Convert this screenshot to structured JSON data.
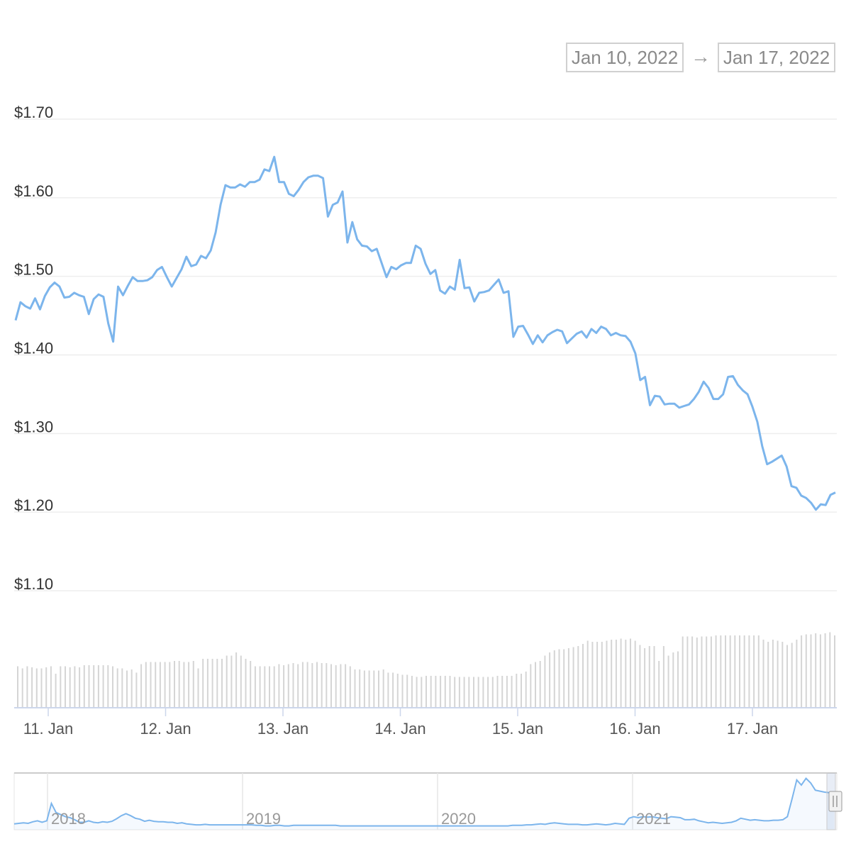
{
  "range": {
    "from": "Jan 10, 2022",
    "arrow": "→",
    "to": "Jan 17, 2022"
  },
  "colors": {
    "line": "#7cb5ec",
    "volume": "#d5d5d5",
    "grid": "#eeeeee",
    "navigator_line": "#7cb5ec"
  },
  "chart_data": {
    "type": "line",
    "title": "",
    "y_ticks": [
      "$1.10",
      "$1.20",
      "$1.30",
      "$1.40",
      "$1.50",
      "$1.60",
      "$1.70"
    ],
    "ylim": [
      1.1,
      1.7
    ],
    "x_ticks": [
      "11. Jan",
      "12. Jan",
      "13. Jan",
      "14. Jan",
      "15. Jan",
      "16. Jan",
      "17. Jan"
    ],
    "x_range": [
      "2022-01-10 16:00",
      "2022-01-17 18:00"
    ],
    "grid": true,
    "legend": "none",
    "series": [
      {
        "values": [
          1.444,
          1.467,
          1.462,
          1.459,
          1.472,
          1.458,
          1.475,
          1.486,
          1.492,
          1.487,
          1.473,
          1.474,
          1.479,
          1.476,
          1.474,
          1.452,
          1.471,
          1.477,
          1.474,
          1.44,
          1.417,
          1.487,
          1.476,
          1.488,
          1.499,
          1.494,
          1.494,
          1.495,
          1.499,
          1.508,
          1.512,
          1.499,
          1.487,
          1.498,
          1.509,
          1.525,
          1.513,
          1.515,
          1.526,
          1.523,
          1.533,
          1.556,
          1.591,
          1.616,
          1.613,
          1.613,
          1.617,
          1.614,
          1.62,
          1.62,
          1.623,
          1.636,
          1.634,
          1.652,
          1.62,
          1.62,
          1.605,
          1.602,
          1.61,
          1.62,
          1.626,
          1.628,
          1.628,
          1.625,
          1.576,
          1.591,
          1.594,
          1.608,
          1.543,
          1.569,
          1.547,
          1.539,
          1.538,
          1.532,
          1.535,
          1.517,
          1.499,
          1.512,
          1.509,
          1.514,
          1.517,
          1.517,
          1.539,
          1.535,
          1.516,
          1.503,
          1.508,
          1.482,
          1.478,
          1.487,
          1.483,
          1.521,
          1.485,
          1.486,
          1.468,
          1.479,
          1.48,
          1.482,
          1.489,
          1.496,
          1.479,
          1.481,
          1.423,
          1.436,
          1.437,
          1.426,
          1.414,
          1.425,
          1.416,
          1.425,
          1.429,
          1.432,
          1.43,
          1.415,
          1.421,
          1.427,
          1.43,
          1.422,
          1.433,
          1.428,
          1.436,
          1.433,
          1.425,
          1.428,
          1.425,
          1.424,
          1.417,
          1.402,
          1.368,
          1.372,
          1.336,
          1.348,
          1.347,
          1.337,
          1.338,
          1.338,
          1.333,
          1.335,
          1.337,
          1.344,
          1.353,
          1.366,
          1.358,
          1.344,
          1.344,
          1.35,
          1.372,
          1.373,
          1.362,
          1.355,
          1.35,
          1.334,
          1.315,
          1.284,
          1.261,
          1.264,
          1.268,
          1.272,
          1.258,
          1.233,
          1.231,
          1.221,
          1.218,
          1.212,
          1.203,
          1.21,
          1.209,
          1.222,
          1.225
        ]
      }
    ],
    "volume": {
      "values": [
        0.39,
        0.37,
        0.39,
        0.38,
        0.37,
        0.37,
        0.38,
        0.39,
        0.32,
        0.39,
        0.39,
        0.38,
        0.39,
        0.38,
        0.4,
        0.4,
        0.4,
        0.4,
        0.4,
        0.4,
        0.39,
        0.37,
        0.37,
        0.35,
        0.36,
        0.33,
        0.41,
        0.43,
        0.43,
        0.43,
        0.43,
        0.43,
        0.43,
        0.44,
        0.44,
        0.43,
        0.43,
        0.44,
        0.37,
        0.46,
        0.46,
        0.46,
        0.46,
        0.46,
        0.49,
        0.49,
        0.52,
        0.49,
        0.46,
        0.44,
        0.39,
        0.39,
        0.39,
        0.39,
        0.39,
        0.41,
        0.4,
        0.41,
        0.42,
        0.41,
        0.43,
        0.43,
        0.42,
        0.43,
        0.42,
        0.42,
        0.41,
        0.4,
        0.41,
        0.41,
        0.39,
        0.36,
        0.36,
        0.35,
        0.35,
        0.35,
        0.35,
        0.36,
        0.33,
        0.33,
        0.32,
        0.31,
        0.31,
        0.3,
        0.29,
        0.29,
        0.3,
        0.3,
        0.3,
        0.3,
        0.3,
        0.3,
        0.29,
        0.29,
        0.29,
        0.29,
        0.29,
        0.29,
        0.29,
        0.29,
        0.29,
        0.3,
        0.3,
        0.3,
        0.3,
        0.32,
        0.32,
        0.34,
        0.41,
        0.43,
        0.44,
        0.49,
        0.52,
        0.54,
        0.55,
        0.55,
        0.56,
        0.57,
        0.58,
        0.6,
        0.63,
        0.62,
        0.62,
        0.62,
        0.63,
        0.64,
        0.64,
        0.65,
        0.64,
        0.65,
        0.63,
        0.59,
        0.56,
        0.58,
        0.58,
        0.44,
        0.58,
        0.49,
        0.52,
        0.53,
        0.67,
        0.67,
        0.67,
        0.66,
        0.67,
        0.67,
        0.67,
        0.68,
        0.68,
        0.68,
        0.68,
        0.68,
        0.68,
        0.68,
        0.68,
        0.68,
        0.68,
        0.64,
        0.62,
        0.64,
        0.63,
        0.62,
        0.59,
        0.61,
        0.64,
        0.68,
        0.69,
        0.69,
        0.7,
        0.69,
        0.7,
        0.71,
        0.68
      ]
    },
    "navigator": {
      "x_ticks": [
        "2018",
        "2019",
        "2020",
        "2021"
      ],
      "values": [
        0.06,
        0.07,
        0.08,
        0.07,
        0.1,
        0.12,
        0.09,
        0.12,
        0.46,
        0.28,
        0.24,
        0.2,
        0.18,
        0.14,
        0.09,
        0.09,
        0.12,
        0.09,
        0.08,
        0.1,
        0.09,
        0.11,
        0.16,
        0.22,
        0.26,
        0.22,
        0.17,
        0.15,
        0.11,
        0.13,
        0.11,
        0.1,
        0.1,
        0.09,
        0.09,
        0.07,
        0.08,
        0.06,
        0.05,
        0.04,
        0.04,
        0.05,
        0.04,
        0.04,
        0.04,
        0.04,
        0.04,
        0.04,
        0.04,
        0.04,
        0.04,
        0.04,
        0.03,
        0.03,
        0.02,
        0.02,
        0.03,
        0.03,
        0.02,
        0.02,
        0.03,
        0.03,
        0.03,
        0.03,
        0.03,
        0.03,
        0.03,
        0.03,
        0.03,
        0.03,
        0.02,
        0.02,
        0.02,
        0.02,
        0.02,
        0.02,
        0.02,
        0.02,
        0.02,
        0.02,
        0.02,
        0.02,
        0.02,
        0.02,
        0.02,
        0.02,
        0.02,
        0.02,
        0.02,
        0.02,
        0.02,
        0.02,
        0.02,
        0.02,
        0.02,
        0.02,
        0.02,
        0.02,
        0.02,
        0.02,
        0.02,
        0.02,
        0.02,
        0.02,
        0.02,
        0.02,
        0.02,
        0.03,
        0.03,
        0.03,
        0.04,
        0.04,
        0.05,
        0.06,
        0.05,
        0.07,
        0.08,
        0.07,
        0.06,
        0.05,
        0.05,
        0.05,
        0.04,
        0.04,
        0.05,
        0.06,
        0.05,
        0.04,
        0.05,
        0.07,
        0.06,
        0.05,
        0.17,
        0.2,
        0.18,
        0.2,
        0.19,
        0.2,
        0.18,
        0.17,
        0.16,
        0.2,
        0.19,
        0.18,
        0.14,
        0.14,
        0.15,
        0.12,
        0.1,
        0.08,
        0.09,
        0.08,
        0.07,
        0.08,
        0.09,
        0.12,
        0.17,
        0.15,
        0.13,
        0.14,
        0.13,
        0.12,
        0.12,
        0.13,
        0.13,
        0.14,
        0.2,
        0.55,
        0.92,
        0.82,
        0.95,
        0.86,
        0.72,
        0.7,
        0.68,
        0.67,
        0.66
      ]
    }
  }
}
